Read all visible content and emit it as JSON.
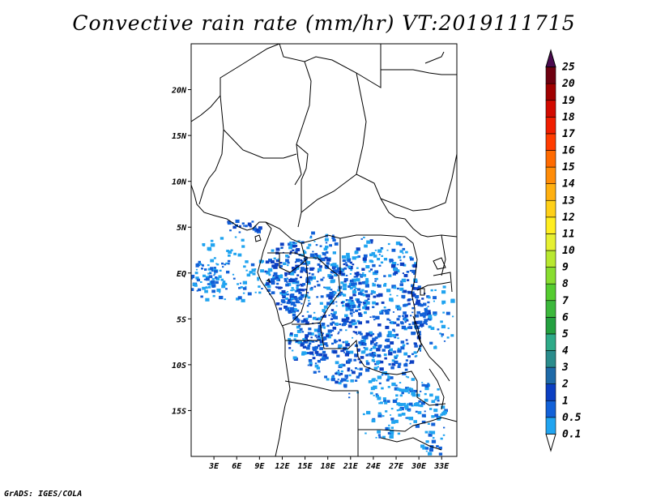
{
  "title": "Convective rain rate (mm/hr) VT:2019111715",
  "footer": "GrADS: IGES/COLA",
  "map": {
    "lon_range": [
      0,
      35
    ],
    "lat_range": [
      -20,
      25
    ],
    "lon_ticks": [
      "3E",
      "6E",
      "9E",
      "12E",
      "15E",
      "18E",
      "21E",
      "24E",
      "27E",
      "30E",
      "33E"
    ],
    "lon_tick_values": [
      3,
      6,
      9,
      12,
      15,
      18,
      21,
      24,
      27,
      30,
      33
    ],
    "lat_ticks": [
      "20N",
      "15N",
      "10N",
      "5N",
      "EQ",
      "5S",
      "10S",
      "15S"
    ],
    "lat_tick_values": [
      20,
      15,
      10,
      5,
      0,
      -5,
      -10,
      -15
    ]
  },
  "colorbar": {
    "labels": [
      "0.1",
      "0.5",
      "1",
      "2",
      "3",
      "4",
      "5",
      "6",
      "7",
      "8",
      "9",
      "10",
      "11",
      "12",
      "13",
      "14",
      "15",
      "16",
      "17",
      "18",
      "19",
      "20",
      "25"
    ],
    "colors": [
      "#21a4f0",
      "#1261d8",
      "#0c3fc2",
      "#1e6aa8",
      "#2a8c8c",
      "#2eaa88",
      "#24a040",
      "#3cb83c",
      "#55cc30",
      "#88dd30",
      "#b8e830",
      "#e6f032",
      "#ffee20",
      "#ffd018",
      "#ffb010",
      "#ff8c08",
      "#ff6a00",
      "#ff3c00",
      "#f01e00",
      "#d20a00",
      "#a00000",
      "#6e0010",
      "#4a0a4e"
    ]
  }
}
